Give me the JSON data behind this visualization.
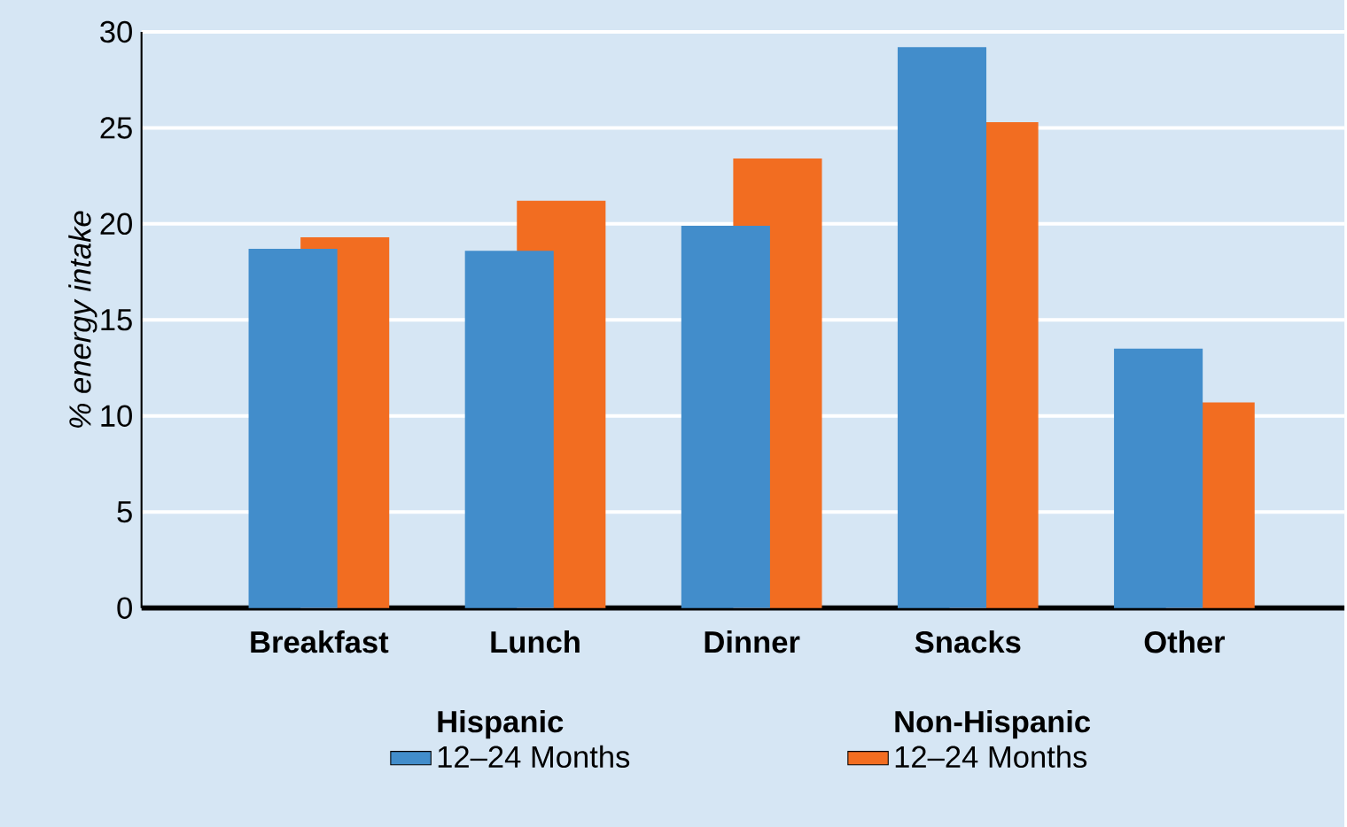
{
  "chart_data": {
    "type": "bar",
    "ylabel": "% energy intake",
    "categories": [
      "Breakfast",
      "Lunch",
      "Dinner",
      "Snacks",
      "Other"
    ],
    "series": [
      {
        "name": "12–24 Months",
        "color": "#428dcb",
        "values": [
          18.7,
          18.6,
          19.9,
          29.2,
          13.5
        ]
      },
      {
        "name": "12–24 Months",
        "color": "#f26d21",
        "values": [
          19.3,
          21.2,
          23.4,
          25.3,
          10.7
        ]
      }
    ],
    "annotations": [
      "Hispanic",
      "Non-Hispanic"
    ],
    "ylim": [
      0,
      30
    ],
    "yticks": [
      0,
      5,
      10,
      15,
      20,
      25,
      30
    ],
    "grid": "y",
    "legend": "bottom"
  }
}
